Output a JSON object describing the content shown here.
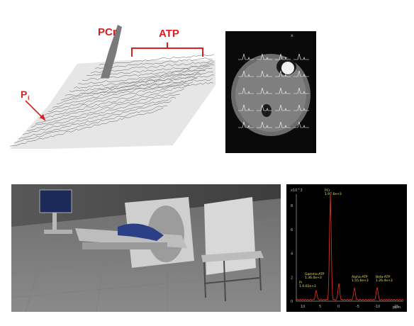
{
  "spectra_labels": {
    "pi_main": "P",
    "pi_sub": "i",
    "pcr": "PCr",
    "atp": "ATP"
  },
  "mri": {
    "marker": "x"
  },
  "spectrum": {
    "y_multiplier": "x10^3",
    "y_ticks": [
      "8",
      "6",
      "4",
      "2",
      "0"
    ],
    "x_ticks": [
      "10",
      "5",
      "0",
      "-5",
      "-10",
      "-15"
    ],
    "x_unit": "ppm",
    "peaks": [
      {
        "name": "PCr",
        "value": "1.97.6e+3"
      },
      {
        "name": "Gamma-ATP",
        "value": "1.36.0e+3"
      },
      {
        "name": "Alpha-ATP",
        "value": "1.55.6e+3"
      },
      {
        "name": "Beta-ATP",
        "value": "1.26.4e+3"
      },
      {
        "name": "Pi",
        "value": "1.0.02e+3"
      }
    ]
  },
  "colors": {
    "annotation_red": "#e01c1c",
    "spectrum_trace": "#d9301e",
    "spectrum_label": "#e8e060"
  }
}
